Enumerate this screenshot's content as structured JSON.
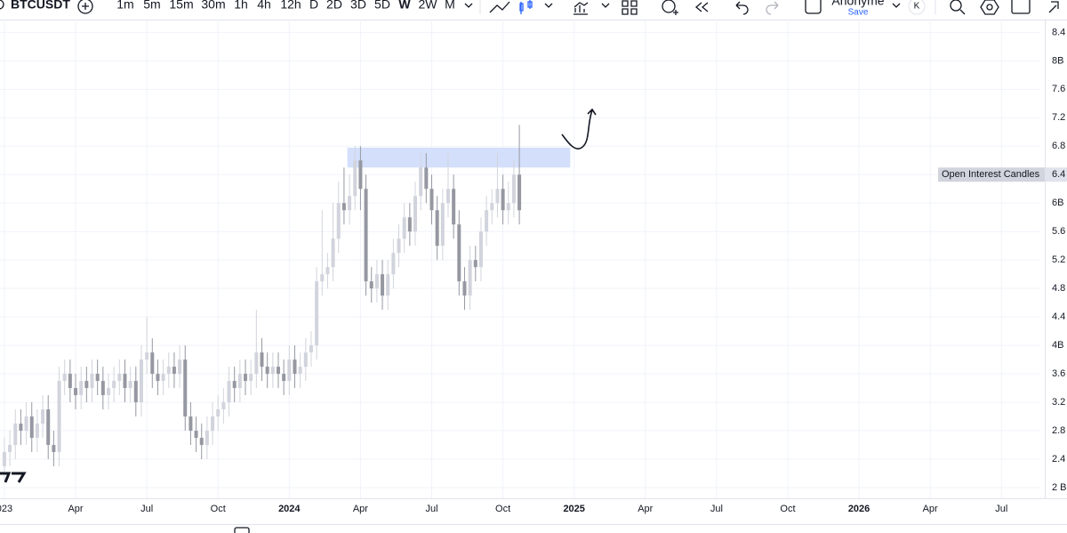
{
  "toolbar": {
    "symbol": "BTCUSDT",
    "intervals": [
      "1m",
      "5m",
      "15m",
      "30m",
      "1h",
      "4h",
      "12h",
      "D",
      "2D",
      "3D",
      "5D",
      "W",
      "2W",
      "M"
    ],
    "user": "Anonyme",
    "save": "Save",
    "badge": "K"
  },
  "chart_data": {
    "type": "candlestick",
    "indicator_label": "Open Interest Candles",
    "x": [
      0,
      1,
      2,
      3,
      4,
      5,
      6,
      7,
      8,
      9,
      10,
      11,
      12,
      13,
      14,
      15,
      16,
      17,
      18,
      19,
      20,
      21,
      22,
      23,
      24,
      25,
      26,
      27,
      28,
      29,
      30,
      31,
      32,
      33,
      34,
      35,
      36,
      37,
      38,
      39,
      40,
      41,
      42,
      43,
      44,
      45,
      46,
      47,
      48,
      49,
      50,
      51,
      52,
      53,
      54,
      55,
      56,
      57,
      58,
      59,
      60,
      61,
      62,
      63,
      64,
      65,
      66,
      67,
      68,
      69,
      70,
      71,
      72,
      73,
      74,
      75,
      76,
      77,
      78,
      79,
      80,
      81,
      82,
      83,
      84,
      85,
      86,
      87,
      88,
      89,
      90,
      91,
      92,
      93,
      94
    ],
    "open": [
      2.3,
      2.5,
      2.6,
      2.9,
      2.8,
      3.0,
      2.7,
      2.9,
      3.1,
      2.6,
      2.5,
      3.5,
      3.6,
      3.4,
      3.3,
      3.5,
      3.4,
      3.6,
      3.5,
      3.3,
      3.4,
      3.5,
      3.6,
      3.4,
      3.5,
      3.2,
      3.8,
      3.9,
      3.6,
      3.5,
      3.6,
      3.7,
      3.6,
      3.8,
      3.0,
      2.8,
      2.7,
      2.6,
      2.8,
      3.0,
      3.1,
      3.2,
      3.5,
      3.4,
      3.6,
      3.5,
      3.6,
      3.9,
      3.7,
      3.6,
      3.7,
      3.6,
      3.5,
      3.8,
      3.6,
      3.7,
      3.9,
      4.0,
      4.9,
      5.0,
      5.1,
      5.5,
      6.0,
      5.9,
      6.1,
      6.6,
      6.2,
      4.9,
      4.8,
      5.0,
      4.7,
      5.0,
      5.3,
      5.5,
      5.8,
      5.6,
      6.1,
      6.5,
      6.2,
      5.9,
      5.4,
      6.0,
      6.2,
      5.7,
      4.9,
      4.7,
      5.2,
      5.1,
      5.6,
      5.9,
      6.0,
      6.2,
      5.9,
      6.0,
      6.4
    ],
    "high": [
      2.7,
      2.8,
      3.1,
      3.1,
      3.2,
      3.2,
      3.1,
      3.3,
      3.3,
      2.8,
      3.7,
      3.8,
      3.8,
      3.6,
      3.7,
      3.7,
      3.8,
      3.8,
      3.7,
      3.6,
      3.7,
      3.8,
      3.8,
      3.7,
      3.7,
      4.0,
      4.4,
      4.1,
      3.8,
      3.8,
      3.9,
      3.9,
      4.0,
      4.0,
      3.2,
      3.0,
      2.9,
      3.0,
      3.2,
      3.3,
      3.4,
      3.7,
      3.7,
      3.8,
      3.8,
      3.8,
      4.5,
      4.1,
      3.9,
      3.9,
      3.9,
      3.8,
      4.0,
      4.0,
      3.9,
      4.1,
      4.2,
      5.1,
      5.9,
      5.3,
      6.0,
      6.3,
      6.5,
      6.4,
      6.8,
      6.8,
      6.4,
      5.1,
      5.2,
      5.2,
      5.2,
      5.5,
      5.7,
      6.0,
      6.0,
      6.3,
      6.7,
      6.7,
      6.4,
      6.1,
      6.2,
      6.7,
      6.4,
      5.9,
      5.1,
      5.4,
      5.4,
      5.8,
      6.1,
      6.2,
      6.7,
      6.4,
      6.3,
      6.6,
      7.1
    ],
    "low": [
      2.1,
      2.3,
      2.4,
      2.6,
      2.6,
      2.5,
      2.5,
      2.7,
      2.4,
      2.3,
      2.3,
      3.3,
      3.2,
      3.1,
      3.1,
      3.2,
      3.2,
      3.3,
      3.1,
      3.1,
      3.2,
      3.3,
      3.2,
      3.2,
      3.0,
      3.0,
      3.6,
      3.4,
      3.3,
      3.3,
      3.4,
      3.4,
      3.4,
      2.8,
      2.6,
      2.5,
      2.4,
      2.4,
      2.6,
      2.8,
      2.9,
      3.0,
      3.2,
      3.2,
      3.3,
      3.3,
      3.4,
      3.5,
      3.4,
      3.4,
      3.4,
      3.3,
      3.3,
      3.4,
      3.4,
      3.5,
      3.7,
      3.8,
      4.7,
      4.8,
      4.9,
      5.3,
      5.7,
      5.7,
      5.9,
      5.9,
      4.7,
      4.6,
      4.6,
      4.5,
      4.5,
      4.8,
      5.1,
      5.3,
      5.4,
      5.4,
      5.9,
      6.0,
      5.7,
      5.2,
      5.2,
      5.8,
      5.5,
      4.7,
      4.5,
      4.5,
      4.9,
      4.9,
      5.4,
      5.7,
      5.8,
      5.7,
      5.7,
      5.8,
      5.7
    ],
    "close": [
      2.5,
      2.6,
      2.9,
      2.8,
      3.0,
      2.7,
      2.9,
      3.1,
      2.6,
      2.5,
      3.5,
      3.6,
      3.4,
      3.3,
      3.5,
      3.4,
      3.6,
      3.5,
      3.3,
      3.4,
      3.5,
      3.6,
      3.4,
      3.5,
      3.2,
      3.8,
      3.9,
      3.6,
      3.5,
      3.6,
      3.7,
      3.6,
      3.8,
      3.0,
      2.8,
      2.7,
      2.6,
      2.8,
      3.0,
      3.1,
      3.2,
      3.5,
      3.4,
      3.6,
      3.5,
      3.6,
      3.9,
      3.7,
      3.6,
      3.7,
      3.6,
      3.5,
      3.8,
      3.6,
      3.7,
      3.9,
      4.0,
      4.9,
      5.0,
      5.1,
      5.5,
      6.0,
      5.9,
      6.1,
      6.6,
      6.2,
      4.9,
      4.8,
      5.0,
      4.7,
      5.0,
      5.3,
      5.5,
      5.8,
      5.6,
      6.1,
      6.5,
      6.2,
      5.9,
      5.4,
      6.0,
      6.2,
      5.7,
      4.9,
      4.7,
      5.2,
      5.1,
      5.6,
      5.9,
      6.0,
      6.2,
      5.9,
      6.0,
      6.4,
      5.9
    ],
    "up_color": "#d1d4dc",
    "down_color": "#9598a1",
    "zone": {
      "x": [
        62.6,
        103.3
      ],
      "y": [
        6.5,
        6.78
      ],
      "color": "#cfdcfb"
    },
    "xlim": [
      -0.8,
      189.1
    ],
    "xticks": [
      {
        "value": 0,
        "label": "023"
      },
      {
        "value": 13,
        "label": "Apr"
      },
      {
        "value": 26,
        "label": "Jul"
      },
      {
        "value": 39,
        "label": "Oct"
      },
      {
        "value": 52,
        "label": "2024"
      },
      {
        "value": 65,
        "label": "Apr"
      },
      {
        "value": 78,
        "label": "Jul"
      },
      {
        "value": 91,
        "label": "Oct"
      },
      {
        "value": 104,
        "label": "2025"
      },
      {
        "value": 117,
        "label": "Apr"
      },
      {
        "value": 130,
        "label": "Jul"
      },
      {
        "value": 143,
        "label": "Oct"
      },
      {
        "value": 156,
        "label": "2026"
      },
      {
        "value": 169,
        "label": "Apr"
      },
      {
        "value": 182,
        "label": "Jul"
      }
    ],
    "ylim": [
      1.85,
      8.58
    ],
    "yticks": [
      {
        "value": 2,
        "label": "2 B"
      },
      2.4,
      2.8,
      3.2,
      3.6,
      {
        "value": 4,
        "label": "4B"
      },
      4.4,
      4.8,
      5.2,
      5.6,
      {
        "value": 6,
        "label": "6B"
      },
      6.4,
      6.8,
      7.2,
      7.6,
      {
        "value": 8,
        "label": "8B"
      },
      8.4
    ],
    "grid": true
  }
}
